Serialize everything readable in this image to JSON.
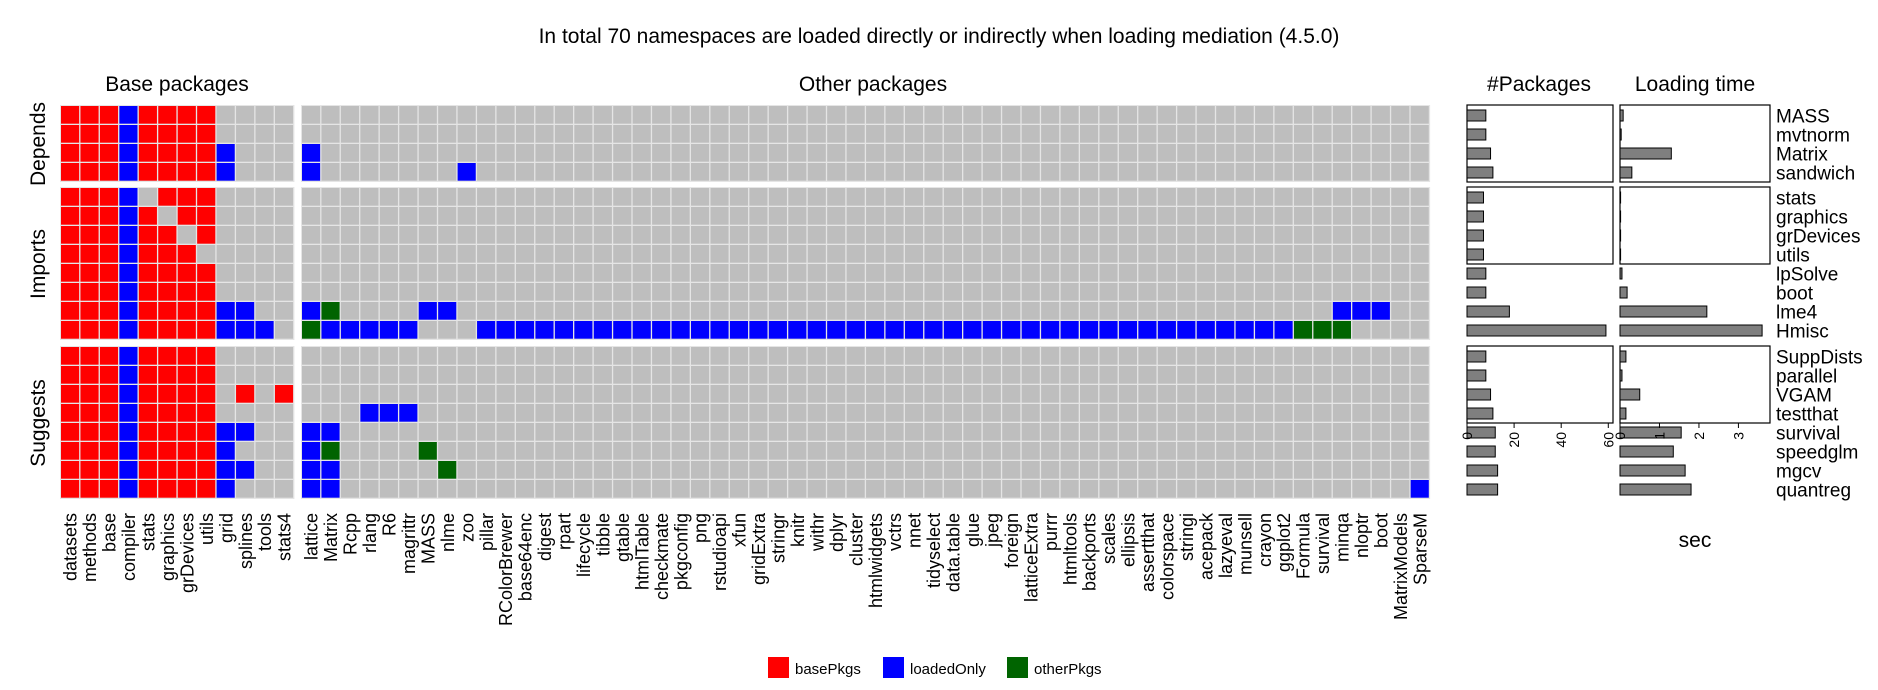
{
  "chart_data": {
    "type": "heatmap",
    "title": "In total 70 namespaces are loaded directly or indirectly when loading mediation (4.5.0)",
    "panels": {
      "base": "Base packages",
      "other": "Other packages",
      "count": "#Packages",
      "time": "Loading time"
    },
    "group_labels": [
      "Depends",
      "Imports",
      "Suggests"
    ],
    "base_packages": [
      "datasets",
      "methods",
      "base",
      "compiler",
      "stats",
      "graphics",
      "grDevices",
      "utils",
      "grid",
      "splines",
      "tools",
      "stats4"
    ],
    "other_packages": [
      "lattice",
      "Matrix",
      "Rcpp",
      "rlang",
      "R6",
      "magrittr",
      "MASS",
      "nlme",
      "zoo",
      "pillar",
      "RColorBrewer",
      "base64enc",
      "digest",
      "rpart",
      "lifecycle",
      "tibble",
      "gtable",
      "htmlTable",
      "checkmate",
      "pkgconfig",
      "png",
      "rstudioapi",
      "xfun",
      "gridExtra",
      "stringr",
      "knitr",
      "withr",
      "dplyr",
      "cluster",
      "htmlwidgets",
      "vctrs",
      "nnet",
      "tidyselect",
      "data.table",
      "glue",
      "jpeg",
      "foreign",
      "latticeExtra",
      "purrr",
      "htmltools",
      "backports",
      "scales",
      "ellipsis",
      "assertthat",
      "colorspace",
      "stringi",
      "acepack",
      "lazyeval",
      "munsell",
      "crayon",
      "ggplot2",
      "Formula",
      "survival",
      "minqa",
      "nloptr",
      "boot",
      "MatrixModels",
      "SparseM"
    ],
    "row_groups": [
      {
        "group": "Depends",
        "rows": [
          {
            "pkg": "MASS",
            "base": "rrrbrrrr....",
            "other": "",
            "n_packages": 8,
            "load_time": 0.08
          },
          {
            "pkg": "mvtnorm",
            "base": "rrrbrrrr....",
            "other": "",
            "n_packages": 8,
            "load_time": 0.03
          },
          {
            "pkg": "Matrix",
            "base": "rrrbrrrrb...",
            "other": "b",
            "n_packages": 10,
            "load_time": 1.3
          },
          {
            "pkg": "sandwich",
            "base": "rrrbrrrrb...",
            "other": "b.......b",
            "n_packages": 11,
            "load_time": 0.3
          }
        ]
      },
      {
        "group": "Imports",
        "rows": [
          {
            "pkg": "stats",
            "base": "rrrb.rrr....",
            "other": "",
            "n_packages": 7,
            "load_time": 0.0
          },
          {
            "pkg": "graphics",
            "base": "rrrbr.rr....",
            "other": "",
            "n_packages": 7,
            "load_time": 0.0
          },
          {
            "pkg": "grDevices",
            "base": "rrrbrr.r....",
            "other": "",
            "n_packages": 7,
            "load_time": 0.0
          },
          {
            "pkg": "utils",
            "base": "rrrbrrr.....",
            "other": "",
            "n_packages": 7,
            "load_time": 0.0
          },
          {
            "pkg": "lpSolve",
            "base": "rrrbrrrr....",
            "other": "",
            "n_packages": 8,
            "load_time": 0.05
          },
          {
            "pkg": "boot",
            "base": "rrrbrrrr....",
            "other": "",
            "n_packages": 8,
            "load_time": 0.18
          },
          {
            "pkg": "lme4",
            "base": "rrrbrrrrbb..",
            "other": "bg....bb.............................................bbb",
            "n_packages": 18,
            "load_time": 2.2
          },
          {
            "pkg": "Hmisc",
            "base": "rrrbrrrrbbb.",
            "other": "gbbbbb...bbbbbbbbbbbbbbbbbbbbbbbbbbbbbbbbbbbbbbbbbbggg",
            "n_packages": 59,
            "load_time": 3.6
          }
        ]
      },
      {
        "group": "Suggests",
        "rows": [
          {
            "pkg": "SuppDists",
            "base": "rrrbrrrr....",
            "other": "",
            "n_packages": 8,
            "load_time": 0.15
          },
          {
            "pkg": "parallel",
            "base": "rrrbrrrr....",
            "other": "",
            "n_packages": 8,
            "load_time": 0.05
          },
          {
            "pkg": "VGAM",
            "base": "rrrbrrrr.r.r",
            "other": "",
            "n_packages": 10,
            "load_time": 0.5
          },
          {
            "pkg": "testthat",
            "base": "rrrbrrrr....",
            "other": "...bbb",
            "n_packages": 11,
            "load_time": 0.15
          },
          {
            "pkg": "survival",
            "base": "rrrbrrrrbb..",
            "other": "bb",
            "n_packages": 12,
            "load_time": 1.55
          },
          {
            "pkg": "speedglm",
            "base": "rrrbrrrrb...",
            "other": "bg....g",
            "n_packages": 12,
            "load_time": 1.35
          },
          {
            "pkg": "mgcv",
            "base": "rrrbrrrrbb..",
            "other": "bb.....g",
            "n_packages": 13,
            "load_time": 1.65
          },
          {
            "pkg": "quantreg",
            "base": "rrrbrrrrb...",
            "other": "bb.......................................................bg",
            "n_packages": 13,
            "load_time": 1.8
          }
        ]
      }
    ],
    "count_axis": {
      "ticks": [
        0,
        20,
        40,
        60
      ],
      "xlim": [
        0,
        62
      ]
    },
    "time_axis": {
      "ticks": [
        0,
        1,
        2,
        3
      ],
      "xlim": [
        0,
        3.8
      ],
      "xlabel": "sec"
    },
    "legend": {
      "position": "bottom",
      "items": [
        {
          "key": "r",
          "label": "basePkgs",
          "color": "#ff0000"
        },
        {
          "key": "b",
          "label": "loadedOnly",
          "color": "#0000ff"
        },
        {
          "key": "g",
          "label": "otherPkgs",
          "color": "#006400"
        }
      ]
    },
    "colors": {
      "empty_cell": "#bebebe",
      "cell_border": "#e5e5e5",
      "bar": "#7f7f7f",
      "bar_border": "#000000"
    }
  }
}
